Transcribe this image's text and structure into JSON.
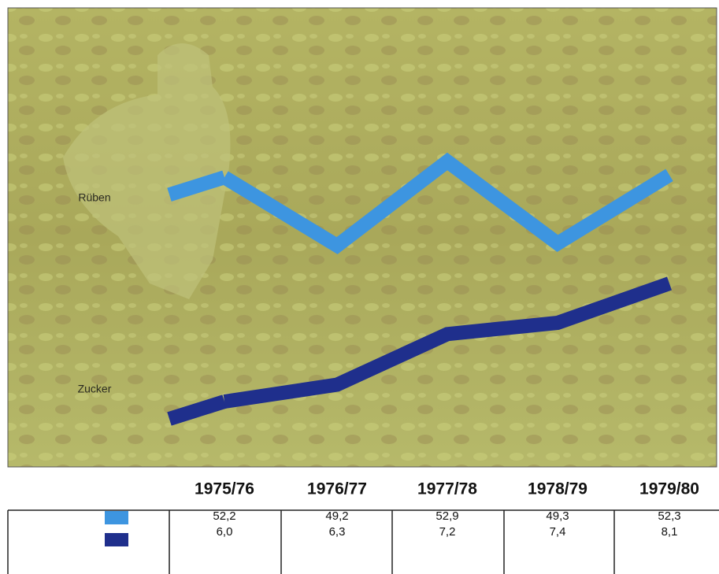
{
  "chart_data": {
    "type": "line",
    "categories": [
      "1975/76",
      "1976/77",
      "1977/78",
      "1978/79",
      "1979/80"
    ],
    "series": [
      {
        "name": "Rüben",
        "color": "#3d95e0",
        "values": [
          52.2,
          49.2,
          52.9,
          49.3,
          52.3
        ],
        "value_labels": [
          "52,2",
          "49,2",
          "52,9",
          "49,3",
          "52,3"
        ]
      },
      {
        "name": "Zucker",
        "color": "#1f2f8c",
        "values": [
          6.0,
          6.3,
          7.2,
          7.4,
          8.1
        ],
        "value_labels": [
          "6,0",
          "6,3",
          "7,2",
          "7,4",
          "8,1"
        ]
      }
    ]
  }
}
